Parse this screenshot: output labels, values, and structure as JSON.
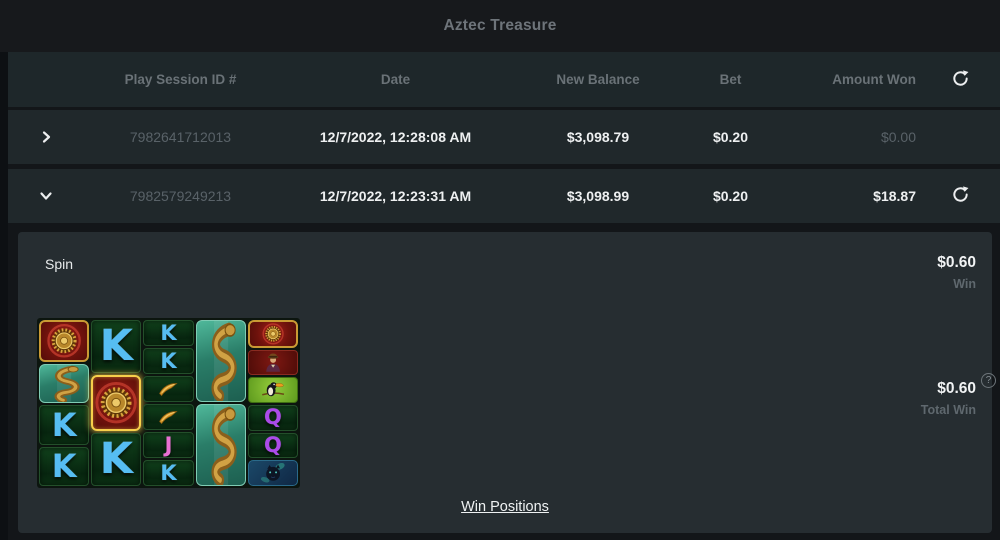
{
  "title": "Aztec Treasure",
  "table": {
    "headers": {
      "session_id": "Play Session ID #",
      "date": "Date",
      "new_balance": "New Balance",
      "bet": "Bet",
      "amount_won": "Amount Won"
    },
    "rows": [
      {
        "session_id": "7982641712013",
        "date": "12/7/2022, 12:28:08 AM",
        "new_balance": "$3,098.79",
        "bet": "$0.20",
        "amount_won": "$0.00",
        "expanded": false
      },
      {
        "session_id": "7982579249213",
        "date": "12/7/2022, 12:23:31 AM",
        "new_balance": "$3,098.99",
        "bet": "$0.20",
        "amount_won": "$18.87",
        "expanded": true
      }
    ]
  },
  "detail": {
    "action_label": "Spin",
    "win_amount": "$0.60",
    "win_label": "Win",
    "total_win_amount": "$0.60",
    "total_win_label": "Total Win",
    "help_glyph": "?",
    "win_positions_link": "Win Positions",
    "grid": {
      "columns": [
        {
          "cells": [
            "medallion",
            "snake",
            "K",
            "K"
          ]
        },
        {
          "cells": [
            "K",
            "medallion-win",
            "K"
          ]
        },
        {
          "cells": [
            "K",
            "K",
            "boomerang",
            "boomerang",
            "J",
            "K"
          ]
        },
        {
          "cells": [
            "snake",
            "snake"
          ]
        },
        {
          "cells": [
            "medallion",
            "adventurer",
            "toucan",
            "Q",
            "Q",
            "panther"
          ]
        }
      ]
    }
  },
  "icons": {
    "refresh": "refresh-icon",
    "collapsed_row": "chevron-right-icon",
    "expanded_row": "chevron-down-icon",
    "help": "question-mark-icon"
  },
  "colors": {
    "page_bg": "#131619",
    "titlebar_bg": "#17191c",
    "header_bg": "#1e272a",
    "row_bg": "#20282b",
    "panel_bg": "#262d31",
    "muted_text": "#596268",
    "header_text": "#6a7277",
    "value_text": "#eef0f1",
    "letter_k": "#56bdf2",
    "letter_j": "#e96fd2",
    "letter_q": "#ab4be9",
    "medallion_border": "#c99a34",
    "win_highlight": "#f7cf4b"
  }
}
